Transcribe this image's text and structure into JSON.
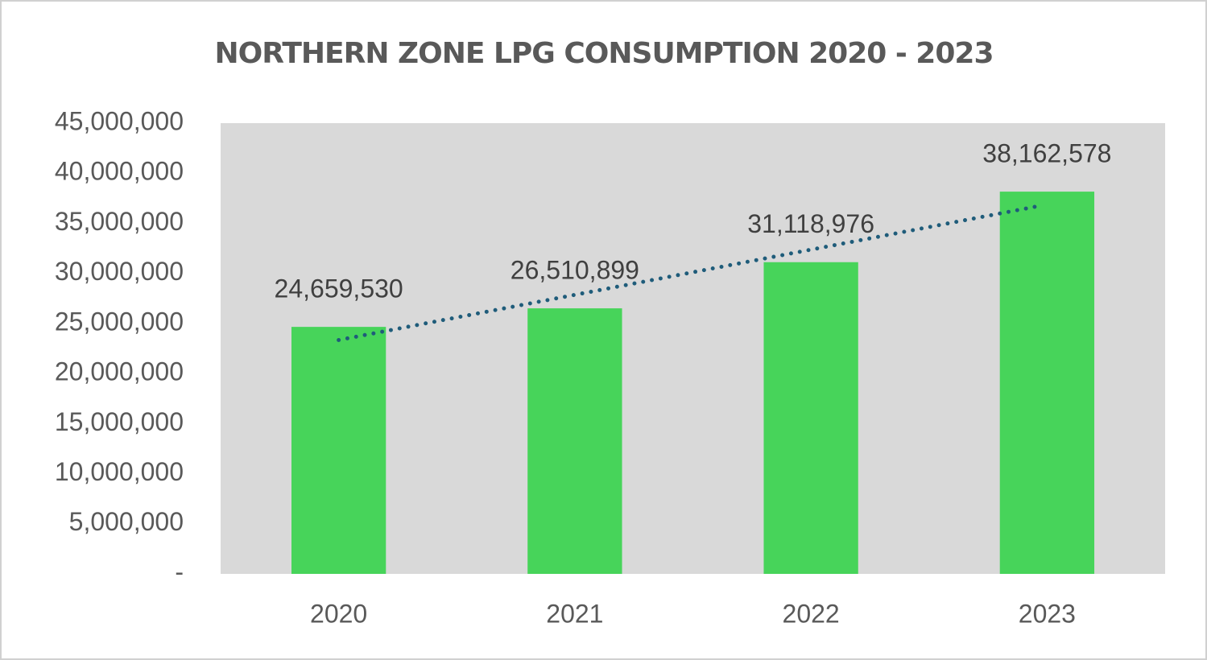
{
  "chart_data": {
    "type": "bar",
    "title": "NORTHERN ZONE LPG CONSUMPTION 2020 - 2023",
    "categories": [
      "2020",
      "2021",
      "2022",
      "2023"
    ],
    "values": [
      24659530,
      26510899,
      31118976,
      38162578
    ],
    "value_labels": [
      "24,659,530",
      "26,510,899",
      "31,118,976",
      "38,162,578"
    ],
    "color": "#47d45a",
    "ylim": [
      0,
      45000000
    ],
    "yticks": [
      {
        "value": 0,
        "label": "-"
      },
      {
        "value": 5000000,
        "label": "5,000,000"
      },
      {
        "value": 10000000,
        "label": "10,000,000"
      },
      {
        "value": 15000000,
        "label": "15,000,000"
      },
      {
        "value": 20000000,
        "label": "20,000,000"
      },
      {
        "value": 25000000,
        "label": "25,000,000"
      },
      {
        "value": 30000000,
        "label": "30,000,000"
      },
      {
        "value": 35000000,
        "label": "35,000,000"
      },
      {
        "value": 40000000,
        "label": "40,000,000"
      },
      {
        "value": 45000000,
        "label": "45,000,000"
      }
    ],
    "grid": false,
    "trendline": "linear",
    "trendline_color": "#1f5c7a",
    "plot_background": "#d9d9d9"
  }
}
